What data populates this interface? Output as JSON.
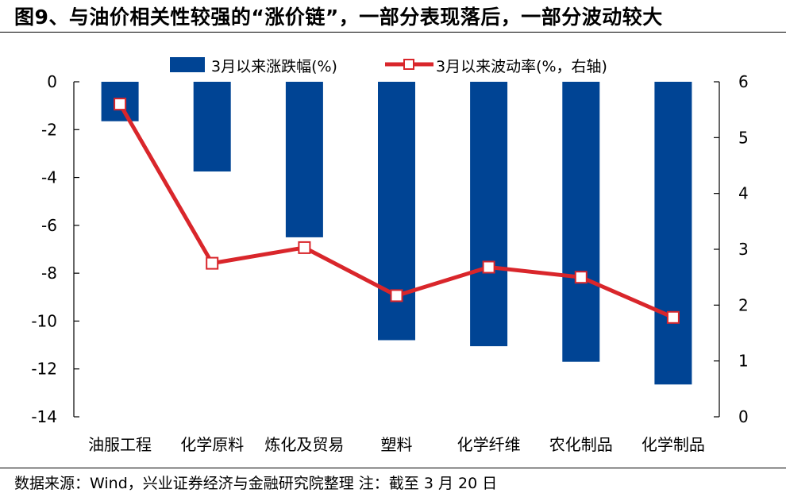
{
  "title": "图9、与油价相关性较强的“涨价链”，一部分表现落后，一部分波动较大",
  "source": "数据来源：Wind，兴业证券经济与金融研究院整理 注：截至 3 月 20 日",
  "colors": {
    "bar": "#004494",
    "line": "#d9262b",
    "marker_fill": "#ffffff"
  },
  "chart_data": {
    "type": "bar",
    "categories": [
      "油服工程",
      "化学原料",
      "炼化及贸易",
      "塑料",
      "化学纤维",
      "农化制品",
      "化学制品"
    ],
    "series": [
      {
        "name": "3月以来涨跌幅(%)",
        "type": "bar",
        "axis": "left",
        "values": [
          -1.65,
          -3.75,
          -6.5,
          -10.8,
          -11.05,
          -11.7,
          -12.65
        ]
      },
      {
        "name": "3月以来波动率(%，右轴)",
        "type": "line",
        "axis": "right",
        "values": [
          5.6,
          2.75,
          3.03,
          2.17,
          2.68,
          2.5,
          1.78
        ]
      }
    ],
    "left_axis": {
      "ylim": [
        -14,
        0
      ],
      "ticks": [
        0,
        -2,
        -4,
        -6,
        -8,
        -10,
        -12,
        -14
      ],
      "tick_labels": [
        "0",
        "-2",
        "-4",
        "-6",
        "-8",
        "-10",
        "-12",
        "-14"
      ]
    },
    "right_axis": {
      "ylim": [
        0,
        6
      ],
      "ticks": [
        6,
        5,
        4,
        3,
        2,
        1,
        0
      ],
      "tick_labels": [
        "6",
        "5",
        "4",
        "3",
        "2",
        "1",
        "0"
      ]
    },
    "legend": {
      "placement": "top-center"
    },
    "grid": false
  }
}
